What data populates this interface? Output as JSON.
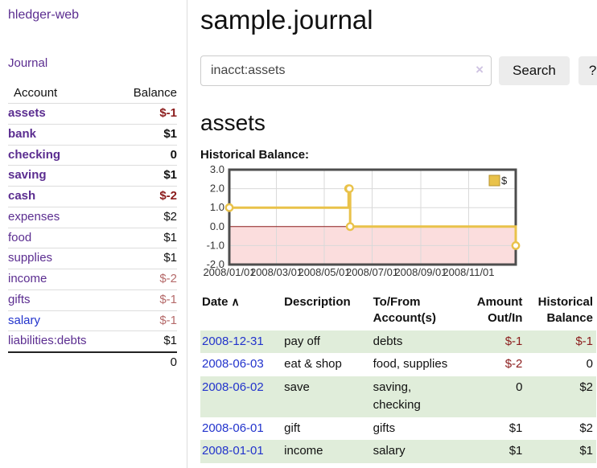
{
  "colors": {
    "link_purple": "#5b2d90",
    "link_blue": "#2233cc",
    "negative_strong": "#8b1c1c",
    "negative_soft": "#b56a6a",
    "row_green": "#e0edda",
    "series_gold": "#e9c24a",
    "negative_region_pink": "#fbdddd"
  },
  "sidebar": {
    "brand": "hledger-web",
    "nav_journal": "Journal",
    "accounts": {
      "col_account": "Account",
      "col_balance": "Balance",
      "rows": [
        {
          "name": "assets",
          "indent": 1,
          "balance": "$-1",
          "bold": true,
          "negative": true,
          "link_color": "purple"
        },
        {
          "name": "bank",
          "indent": 2,
          "balance": "$1",
          "bold": true,
          "negative": false,
          "link_color": "purple"
        },
        {
          "name": "checking",
          "indent": 3,
          "balance": "0",
          "bold": true,
          "negative": false,
          "link_color": "purple"
        },
        {
          "name": "saving",
          "indent": 3,
          "balance": "$1",
          "bold": true,
          "negative": false,
          "link_color": "purple"
        },
        {
          "name": "cash",
          "indent": 2,
          "balance": "$-2",
          "bold": true,
          "negative": true,
          "link_color": "purple"
        },
        {
          "name": "expenses",
          "indent": 1,
          "balance": "$2",
          "bold": false,
          "negative": false,
          "link_color": "purple"
        },
        {
          "name": "food",
          "indent": 2,
          "balance": "$1",
          "bold": false,
          "negative": false,
          "link_color": "purple"
        },
        {
          "name": "supplies",
          "indent": 2,
          "balance": "$1",
          "bold": false,
          "negative": false,
          "link_color": "purple"
        },
        {
          "name": "income",
          "indent": 1,
          "balance": "$-2",
          "bold": false,
          "negative": true,
          "link_color": "purple"
        },
        {
          "name": "gifts",
          "indent": 2,
          "balance": "$-1",
          "bold": false,
          "negative": true,
          "link_color": "purple"
        },
        {
          "name": "salary",
          "indent": 2,
          "balance": "$-1",
          "bold": false,
          "negative": true,
          "link_color": "blue"
        },
        {
          "name": "liabilities:debts",
          "indent": 1,
          "balance": "$1",
          "bold": false,
          "negative": false,
          "link_color": "purple"
        }
      ],
      "total": "0"
    }
  },
  "header": {
    "title": "sample.journal"
  },
  "search": {
    "value": "inacct:assets",
    "clear_icon": "×",
    "search_button": "Search",
    "help_button": "?"
  },
  "account_page": {
    "heading": "assets",
    "chart_label": "Historical Balance:"
  },
  "chart_data": {
    "type": "line",
    "step": true,
    "title": "Historical Balance",
    "series": [
      {
        "name": "$",
        "points": [
          [
            "2008-01-01",
            1
          ],
          [
            "2008-06-01",
            2
          ],
          [
            "2008-06-02",
            2
          ],
          [
            "2008-06-03",
            0
          ],
          [
            "2008-12-31",
            -1
          ]
        ]
      }
    ],
    "x_range": [
      "2008-01-01",
      "2008-12-31"
    ],
    "x_ticks": [
      {
        "date": "2008-01-01",
        "label": "2008/01/01"
      },
      {
        "date": "2008-03-01",
        "label": "2008/03/01"
      },
      {
        "date": "2008-05-01",
        "label": "2008/05/01"
      },
      {
        "date": "2008-07-01",
        "label": "2008/07/01"
      },
      {
        "date": "2008-09-01",
        "label": "2008/09/01"
      },
      {
        "date": "2008-11-01",
        "label": "2008/11/01"
      }
    ],
    "ylim": [
      -2,
      3
    ],
    "y_ticks": [
      {
        "value": 3,
        "label": "3.0"
      },
      {
        "value": 2,
        "label": "2.0"
      },
      {
        "value": 1,
        "label": "1.0"
      },
      {
        "value": 0,
        "label": "0.0"
      },
      {
        "value": -1,
        "label": "-1.0"
      },
      {
        "value": -2,
        "label": "-2.0"
      }
    ],
    "grid": true,
    "legend": {
      "label": "$",
      "position": "top-right"
    },
    "negative_region_shaded": true
  },
  "transactions": {
    "sort_asc_icon": "∧",
    "columns": [
      {
        "label": "Date"
      },
      {
        "label": "Description"
      },
      {
        "label": "To/From Account(s)"
      },
      {
        "label": "Amount Out/In"
      },
      {
        "label": "Historical Balance"
      }
    ],
    "rows": [
      {
        "date": "2008-12-31",
        "description": "pay off",
        "accounts": "debts",
        "amount": "$-1",
        "amount_negative": true,
        "balance": "$-1",
        "balance_negative": true
      },
      {
        "date": "2008-06-03",
        "description": "eat & shop",
        "accounts": "food, supplies",
        "amount": "$-2",
        "amount_negative": true,
        "balance": "0",
        "balance_negative": false
      },
      {
        "date": "2008-06-02",
        "description": "save",
        "accounts": "saving, checking",
        "amount": "0",
        "amount_negative": false,
        "balance": "$2",
        "balance_negative": false
      },
      {
        "date": "2008-06-01",
        "description": "gift",
        "accounts": "gifts",
        "amount": "$1",
        "amount_negative": false,
        "balance": "$2",
        "balance_negative": false
      },
      {
        "date": "2008-01-01",
        "description": "income",
        "accounts": "salary",
        "amount": "$1",
        "amount_negative": false,
        "balance": "$1",
        "balance_negative": false
      }
    ]
  }
}
